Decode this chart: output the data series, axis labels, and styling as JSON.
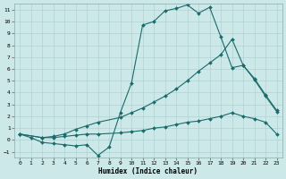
{
  "xlabel": "Humidex (Indice chaleur)",
  "xlim": [
    -0.5,
    23.5
  ],
  "ylim": [
    -1.5,
    11.5
  ],
  "xticks": [
    0,
    1,
    2,
    3,
    4,
    5,
    6,
    7,
    8,
    9,
    10,
    11,
    12,
    13,
    14,
    15,
    16,
    17,
    18,
    19,
    20,
    21,
    22,
    23
  ],
  "yticks": [
    -1,
    0,
    1,
    2,
    3,
    4,
    5,
    6,
    7,
    8,
    9,
    10,
    11
  ],
  "bg_color": "#cde8e8",
  "grid_color": "#aacccc",
  "line_color": "#1a6b6b",
  "line1_x": [
    0,
    1,
    2,
    3,
    4,
    5,
    6,
    7,
    8,
    9,
    10,
    11,
    12,
    13,
    14,
    15,
    16,
    17,
    18,
    19,
    20,
    21,
    22,
    23
  ],
  "line1_y": [
    0.5,
    0.2,
    -0.2,
    -0.3,
    -0.4,
    -0.5,
    -0.4,
    -1.3,
    -0.6,
    2.3,
    4.8,
    9.7,
    10.0,
    10.9,
    11.1,
    11.4,
    10.7,
    11.2,
    8.7,
    6.1,
    6.3,
    5.1,
    3.7,
    2.4
  ],
  "line2_x": [
    0,
    2,
    3,
    4,
    5,
    6,
    7,
    9,
    10,
    11,
    12,
    13,
    14,
    15,
    16,
    17,
    18,
    19,
    20,
    21,
    22,
    23
  ],
  "line2_y": [
    0.5,
    0.2,
    0.3,
    0.5,
    0.9,
    1.2,
    1.5,
    1.9,
    2.3,
    2.7,
    3.2,
    3.7,
    4.3,
    5.0,
    5.8,
    6.5,
    7.2,
    8.5,
    6.3,
    5.2,
    3.8,
    2.5
  ],
  "line3_x": [
    0,
    2,
    3,
    4,
    5,
    6,
    7,
    9,
    10,
    11,
    12,
    13,
    14,
    15,
    16,
    17,
    18,
    19,
    20,
    21,
    22,
    23
  ],
  "line3_y": [
    0.5,
    0.2,
    0.2,
    0.3,
    0.4,
    0.5,
    0.5,
    0.6,
    0.7,
    0.8,
    1.0,
    1.1,
    1.3,
    1.5,
    1.6,
    1.8,
    2.0,
    2.3,
    2.0,
    1.8,
    1.5,
    0.5
  ]
}
